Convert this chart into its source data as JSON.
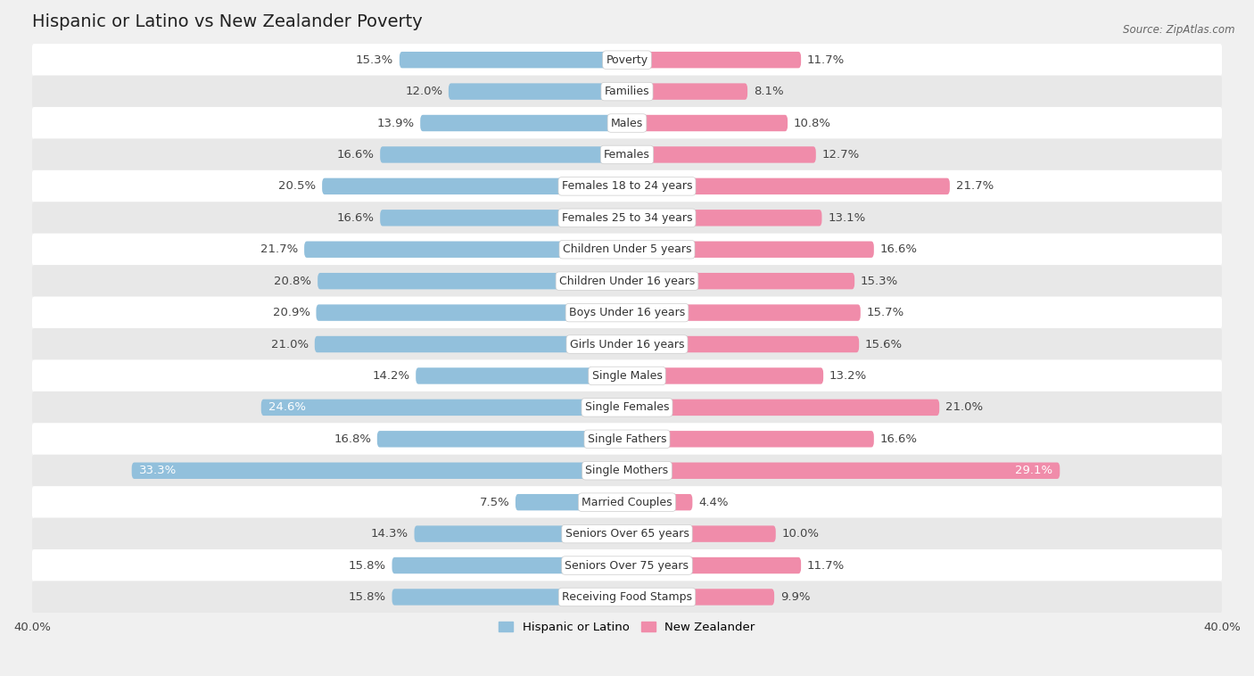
{
  "title": "Hispanic or Latino vs New Zealander Poverty",
  "source": "Source: ZipAtlas.com",
  "categories": [
    "Poverty",
    "Families",
    "Males",
    "Females",
    "Females 18 to 24 years",
    "Females 25 to 34 years",
    "Children Under 5 years",
    "Children Under 16 years",
    "Boys Under 16 years",
    "Girls Under 16 years",
    "Single Males",
    "Single Females",
    "Single Fathers",
    "Single Mothers",
    "Married Couples",
    "Seniors Over 65 years",
    "Seniors Over 75 years",
    "Receiving Food Stamps"
  ],
  "hispanic_values": [
    15.3,
    12.0,
    13.9,
    16.6,
    20.5,
    16.6,
    21.7,
    20.8,
    20.9,
    21.0,
    14.2,
    24.6,
    16.8,
    33.3,
    7.5,
    14.3,
    15.8,
    15.8
  ],
  "nz_values": [
    11.7,
    8.1,
    10.8,
    12.7,
    21.7,
    13.1,
    16.6,
    15.3,
    15.7,
    15.6,
    13.2,
    21.0,
    16.6,
    29.1,
    4.4,
    10.0,
    11.7,
    9.9
  ],
  "hispanic_color": "#92c0dc",
  "nz_color": "#f08caa",
  "background_color": "#f0f0f0",
  "row_odd_color": "#ffffff",
  "row_even_color": "#e8e8e8",
  "axis_limit": 40.0,
  "bar_height": 0.52,
  "label_fontsize": 9.5,
  "title_fontsize": 14,
  "category_fontsize": 9,
  "value_inside_threshold": 22.0
}
